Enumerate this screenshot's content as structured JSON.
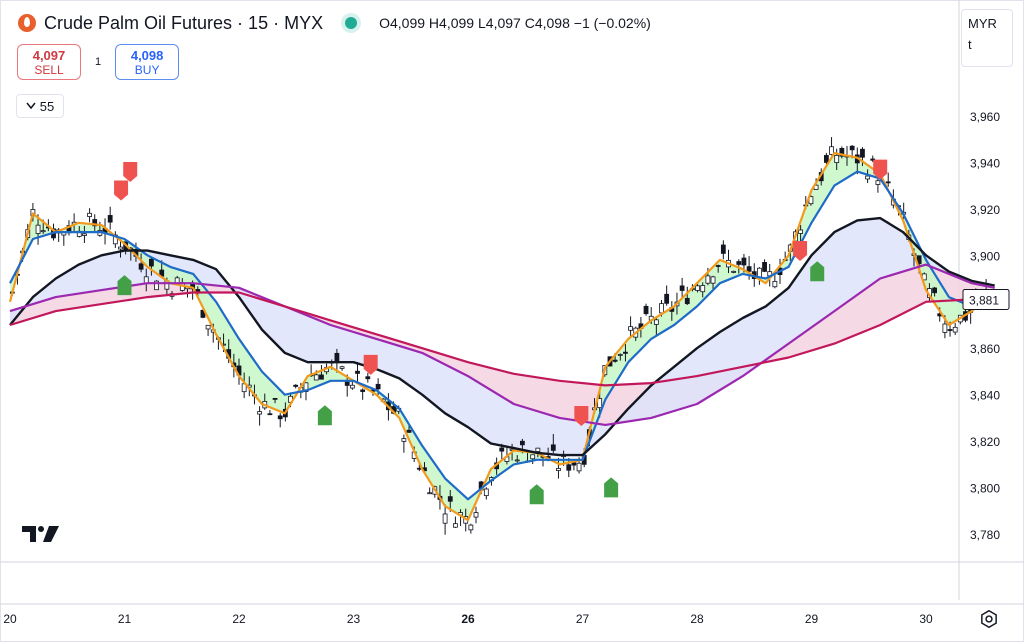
{
  "header": {
    "title": "Crude Palm Oil Futures · 15 · MYX",
    "ohlc": {
      "o_label": "O",
      "o": "4,099",
      "h_label": "H",
      "h": "4,099",
      "l_label": "L",
      "l": "4,097",
      "c_label": "C",
      "c": "4,098",
      "change": "−1 (−0.02%)"
    }
  },
  "trade": {
    "sell_price": "4,097",
    "sell_label": "SELL",
    "spread": "1",
    "buy_price": "4,098",
    "buy_label": "BUY"
  },
  "indicator": {
    "label": "55"
  },
  "right_panel": {
    "currency": "MYR",
    "unit": "t"
  },
  "price_tag": "3,881",
  "colors": {
    "up": "#131722",
    "fill_green": "#c8f7c5",
    "fill_blue": "#dde3fa",
    "fill_pink": "#f3d3e1",
    "line_orange": "#f29a1d",
    "line_blue": "#1e6bc8",
    "line_black": "#131722",
    "line_purple": "#9c27b0",
    "line_crimson": "#c2185b",
    "marker_red": "#ef5350",
    "marker_green": "#43a047"
  },
  "chart_data": {
    "type": "line",
    "y_ticks": [
      "3,960",
      "3,940",
      "3,920",
      "3,900",
      "3,880",
      "3,860",
      "3,840",
      "3,820",
      "3,800",
      "3,780"
    ],
    "y_tick_values": [
      3960,
      3940,
      3920,
      3900,
      3880,
      3860,
      3840,
      3820,
      3800,
      3780
    ],
    "ylim": [
      3768,
      3972
    ],
    "x_ticks": [
      "20",
      "21",
      "22",
      "23",
      "26",
      "27",
      "28",
      "29",
      "30"
    ],
    "x_tick_positions": [
      0,
      1,
      2,
      3,
      4,
      5,
      6,
      7,
      8
    ],
    "xlim": [
      0,
      8.7
    ],
    "series": [
      {
        "key": "ema_fast",
        "color": "#f29a1d",
        "x": [
          0,
          0.2,
          0.4,
          0.6,
          0.8,
          1.0,
          1.2,
          1.4,
          1.6,
          1.8,
          2.0,
          2.2,
          2.4,
          2.6,
          2.8,
          3.0,
          3.2,
          3.4,
          3.6,
          3.8,
          4.0,
          4.2,
          4.4,
          4.6,
          4.8,
          5.0,
          5.2,
          5.4,
          5.6,
          5.8,
          6.0,
          6.2,
          6.4,
          6.6,
          6.8,
          7.0,
          7.2,
          7.4,
          7.6,
          7.8,
          8.0,
          8.2,
          8.4,
          8.6
        ],
        "y": [
          3880,
          3918,
          3910,
          3914,
          3913,
          3905,
          3895,
          3888,
          3886,
          3866,
          3848,
          3836,
          3832,
          3848,
          3852,
          3846,
          3840,
          3830,
          3808,
          3792,
          3786,
          3808,
          3816,
          3815,
          3810,
          3812,
          3852,
          3864,
          3872,
          3878,
          3888,
          3898,
          3894,
          3888,
          3900,
          3928,
          3944,
          3942,
          3935,
          3915,
          3885,
          3870,
          3876,
          3885
        ]
      },
      {
        "key": "ema_mid",
        "color": "#1e6bc8",
        "x": [
          0,
          0.2,
          0.4,
          0.6,
          0.8,
          1.0,
          1.2,
          1.4,
          1.6,
          1.8,
          2.0,
          2.2,
          2.4,
          2.6,
          2.8,
          3.0,
          3.2,
          3.4,
          3.6,
          3.8,
          4.0,
          4.2,
          4.4,
          4.6,
          4.8,
          5.0,
          5.2,
          5.4,
          5.6,
          5.8,
          6.0,
          6.2,
          6.4,
          6.6,
          6.8,
          7.0,
          7.2,
          7.4,
          7.6,
          7.8,
          8.0,
          8.2,
          8.4,
          8.6
        ],
        "y": [
          3888,
          3907,
          3910,
          3910,
          3910,
          3907,
          3900,
          3895,
          3892,
          3880,
          3864,
          3850,
          3840,
          3842,
          3846,
          3846,
          3842,
          3834,
          3818,
          3804,
          3795,
          3803,
          3810,
          3812,
          3812,
          3812,
          3838,
          3854,
          3864,
          3870,
          3878,
          3888,
          3892,
          3890,
          3895,
          3914,
          3930,
          3936,
          3933,
          3918,
          3898,
          3882,
          3878,
          3882
        ]
      },
      {
        "key": "ema_slow",
        "color": "#131722",
        "x": [
          0,
          0.2,
          0.4,
          0.6,
          0.8,
          1.0,
          1.2,
          1.4,
          1.6,
          1.8,
          2.0,
          2.2,
          2.4,
          2.6,
          2.8,
          3.0,
          3.2,
          3.4,
          3.6,
          3.8,
          4.0,
          4.2,
          4.4,
          4.6,
          4.8,
          5.0,
          5.2,
          5.4,
          5.6,
          5.8,
          6.0,
          6.2,
          6.4,
          6.6,
          6.8,
          7.0,
          7.2,
          7.4,
          7.6,
          7.8,
          8.0,
          8.2,
          8.4,
          8.6
        ],
        "y": [
          3870,
          3882,
          3890,
          3896,
          3900,
          3902,
          3902,
          3900,
          3898,
          3894,
          3882,
          3868,
          3858,
          3854,
          3854,
          3854,
          3851,
          3847,
          3840,
          3832,
          3826,
          3819,
          3817,
          3815,
          3814,
          3814,
          3823,
          3834,
          3844,
          3852,
          3860,
          3867,
          3873,
          3878,
          3886,
          3900,
          3910,
          3915,
          3916,
          3910,
          3900,
          3893,
          3889,
          3887
        ]
      },
      {
        "key": "sma_purple",
        "color": "#9c27b0",
        "x": [
          0,
          0.4,
          0.8,
          1.2,
          1.6,
          2.0,
          2.4,
          2.8,
          3.2,
          3.6,
          4.0,
          4.4,
          4.8,
          5.2,
          5.6,
          6.0,
          6.4,
          6.8,
          7.2,
          7.6,
          8.0,
          8.4,
          8.6
        ],
        "y": [
          3876,
          3882,
          3885,
          3888,
          3888,
          3886,
          3878,
          3870,
          3864,
          3858,
          3848,
          3836,
          3830,
          3827,
          3830,
          3836,
          3848,
          3862,
          3876,
          3890,
          3896,
          3888,
          3886
        ]
      },
      {
        "key": "sma_crimson",
        "color": "#c2185b",
        "x": [
          0,
          0.4,
          0.8,
          1.2,
          1.6,
          2.0,
          2.4,
          2.8,
          3.2,
          3.6,
          4.0,
          4.4,
          4.8,
          5.2,
          5.6,
          6.0,
          6.4,
          6.8,
          7.2,
          7.6,
          8.0,
          8.4,
          8.6
        ],
        "y": [
          3870,
          3876,
          3879,
          3882,
          3884,
          3884,
          3878,
          3872,
          3866,
          3860,
          3854,
          3849,
          3846,
          3844,
          3845,
          3848,
          3852,
          3856,
          3862,
          3870,
          3880,
          3881,
          3881
        ]
      }
    ],
    "sell_markers": [
      {
        "x": 0.97,
        "y": 3927
      },
      {
        "x": 1.05,
        "y": 3935
      },
      {
        "x": 3.15,
        "y": 3852
      },
      {
        "x": 4.99,
        "y": 3830
      },
      {
        "x": 6.9,
        "y": 3901
      },
      {
        "x": 7.6,
        "y": 3936
      }
    ],
    "buy_markers": [
      {
        "x": 1.0,
        "y": 3888
      },
      {
        "x": 2.75,
        "y": 3832
      },
      {
        "x": 4.6,
        "y": 3798
      },
      {
        "x": 5.25,
        "y": 3801
      },
      {
        "x": 7.05,
        "y": 3894
      }
    ]
  }
}
